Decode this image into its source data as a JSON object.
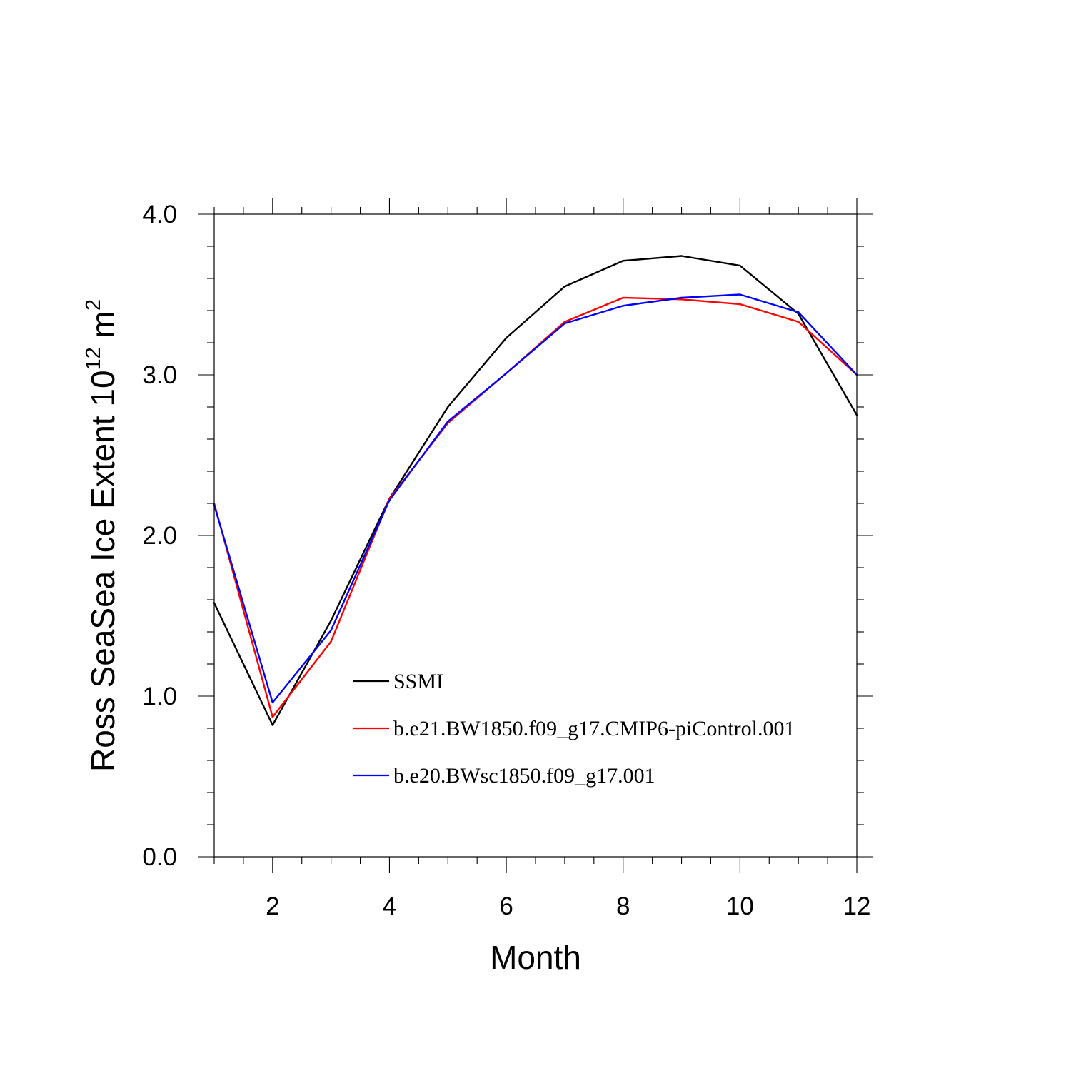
{
  "chart_data": {
    "type": "line",
    "title": "",
    "xlabel": "Month",
    "ylabel": {
      "main": "Ross SeaSea Ice Extent 10",
      "exponent": "12",
      "unit": "m",
      "unit_exponent": "2"
    },
    "xlim": [
      1,
      12
    ],
    "ylim": [
      0.0,
      4.0
    ],
    "x_major_ticks": [
      2,
      4,
      6,
      8,
      10,
      12
    ],
    "x_tick_labels": [
      "2",
      "4",
      "6",
      "8",
      "10",
      "12"
    ],
    "y_major_ticks": [
      0.0,
      1.0,
      2.0,
      3.0,
      4.0
    ],
    "y_tick_labels": [
      "0.0",
      "1.0",
      "2.0",
      "3.0",
      "4.0"
    ],
    "x": [
      1,
      2,
      3,
      4,
      5,
      6,
      7,
      8,
      9,
      10,
      11,
      12
    ],
    "series": [
      {
        "name": "SSMI",
        "color": "#000000",
        "values": [
          1.58,
          0.82,
          1.47,
          2.23,
          2.8,
          3.23,
          3.55,
          3.71,
          3.74,
          3.68,
          3.38,
          2.75
        ]
      },
      {
        "name": "b.e21.BW1850.f09_g17.CMIP6-piControl.001",
        "color": "#ff0000",
        "values": [
          2.2,
          0.87,
          1.34,
          2.23,
          2.7,
          3.01,
          3.33,
          3.48,
          3.47,
          3.44,
          3.33,
          3.0
        ]
      },
      {
        "name": "b.e20.BWsc1850.f09_g17.001",
        "color": "#0000ff",
        "values": [
          2.19,
          0.96,
          1.41,
          2.22,
          2.71,
          3.01,
          3.32,
          3.43,
          3.48,
          3.5,
          3.39,
          3.0
        ]
      }
    ],
    "legend_position": "lower-center",
    "grid": false
  }
}
